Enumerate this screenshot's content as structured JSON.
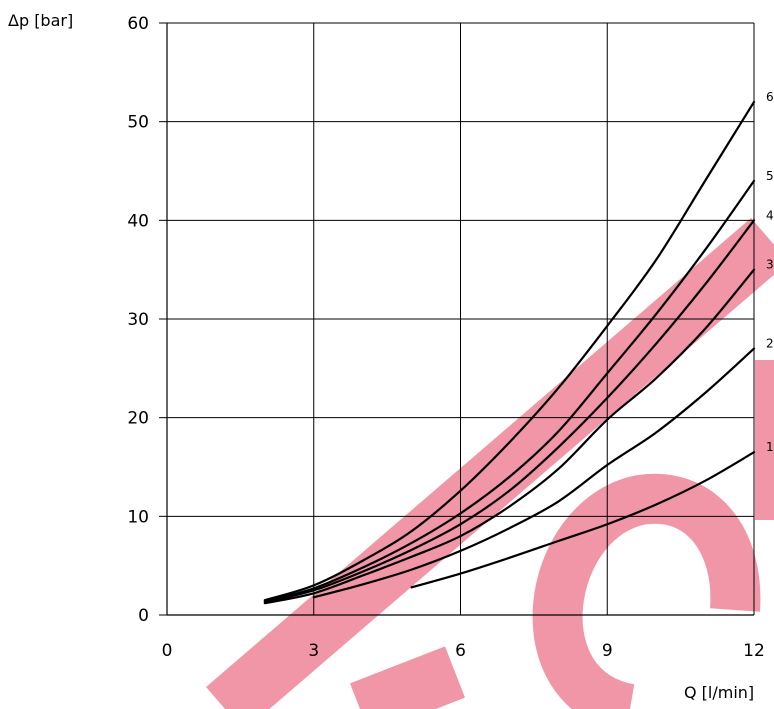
{
  "chart_data": {
    "type": "line",
    "title": "",
    "xlabel": "Q [l/min]",
    "ylabel": "Δp [bar]",
    "xlim": [
      0,
      12
    ],
    "ylim": [
      0,
      60
    ],
    "x_ticks": [
      0,
      3,
      6,
      9,
      12
    ],
    "y_ticks": [
      0,
      10,
      20,
      30,
      40,
      50,
      60
    ],
    "x_tick_labels": [
      "0",
      "3",
      "6",
      "9",
      "12"
    ],
    "y_tick_labels": [
      "0",
      "10",
      "20",
      "30",
      "40",
      "50",
      "60"
    ],
    "grid": true,
    "legend": "none",
    "series": [
      {
        "name": "1",
        "x": [
          5,
          6,
          7,
          8,
          9,
          10,
          11,
          12
        ],
        "y": [
          2.8,
          4.2,
          5.8,
          7.5,
          9.2,
          11.2,
          13.6,
          16.5
        ]
      },
      {
        "name": "2",
        "x": [
          3,
          4,
          5,
          6,
          7,
          8,
          9,
          10,
          11,
          12
        ],
        "y": [
          1.8,
          3.1,
          4.6,
          6.5,
          8.8,
          11.5,
          15.2,
          18.5,
          22.5,
          27
        ]
      },
      {
        "name": "3",
        "x": [
          2,
          3,
          4,
          5,
          6,
          7,
          8,
          9,
          10,
          11,
          12
        ],
        "y": [
          1.2,
          2.2,
          4.0,
          5.9,
          8.0,
          11.0,
          14.8,
          19.8,
          24.0,
          29.0,
          35.0
        ]
      },
      {
        "name": "4",
        "x": [
          2,
          3,
          4,
          5,
          6,
          7,
          8,
          9,
          10,
          11,
          12
        ],
        "y": [
          1.3,
          2.5,
          4.4,
          6.6,
          9.2,
          12.6,
          17.0,
          22.0,
          27.5,
          33.5,
          40.0
        ]
      },
      {
        "name": "5",
        "x": [
          2,
          3,
          4,
          5,
          6,
          7,
          8,
          9,
          10,
          11,
          12
        ],
        "y": [
          1.4,
          2.7,
          4.8,
          7.3,
          10.3,
          14.0,
          18.6,
          24.5,
          30.5,
          37.0,
          44.0
        ]
      },
      {
        "name": "6",
        "x": [
          2,
          3,
          4,
          5,
          6,
          7,
          8,
          9,
          10,
          11,
          12
        ],
        "y": [
          1.5,
          3.0,
          5.5,
          8.5,
          12.6,
          17.5,
          23.0,
          29.3,
          36.0,
          44.0,
          52.0
        ]
      }
    ],
    "colors": {
      "line": "#000000",
      "grid": "#000000",
      "watermark": "#e3405f"
    }
  }
}
